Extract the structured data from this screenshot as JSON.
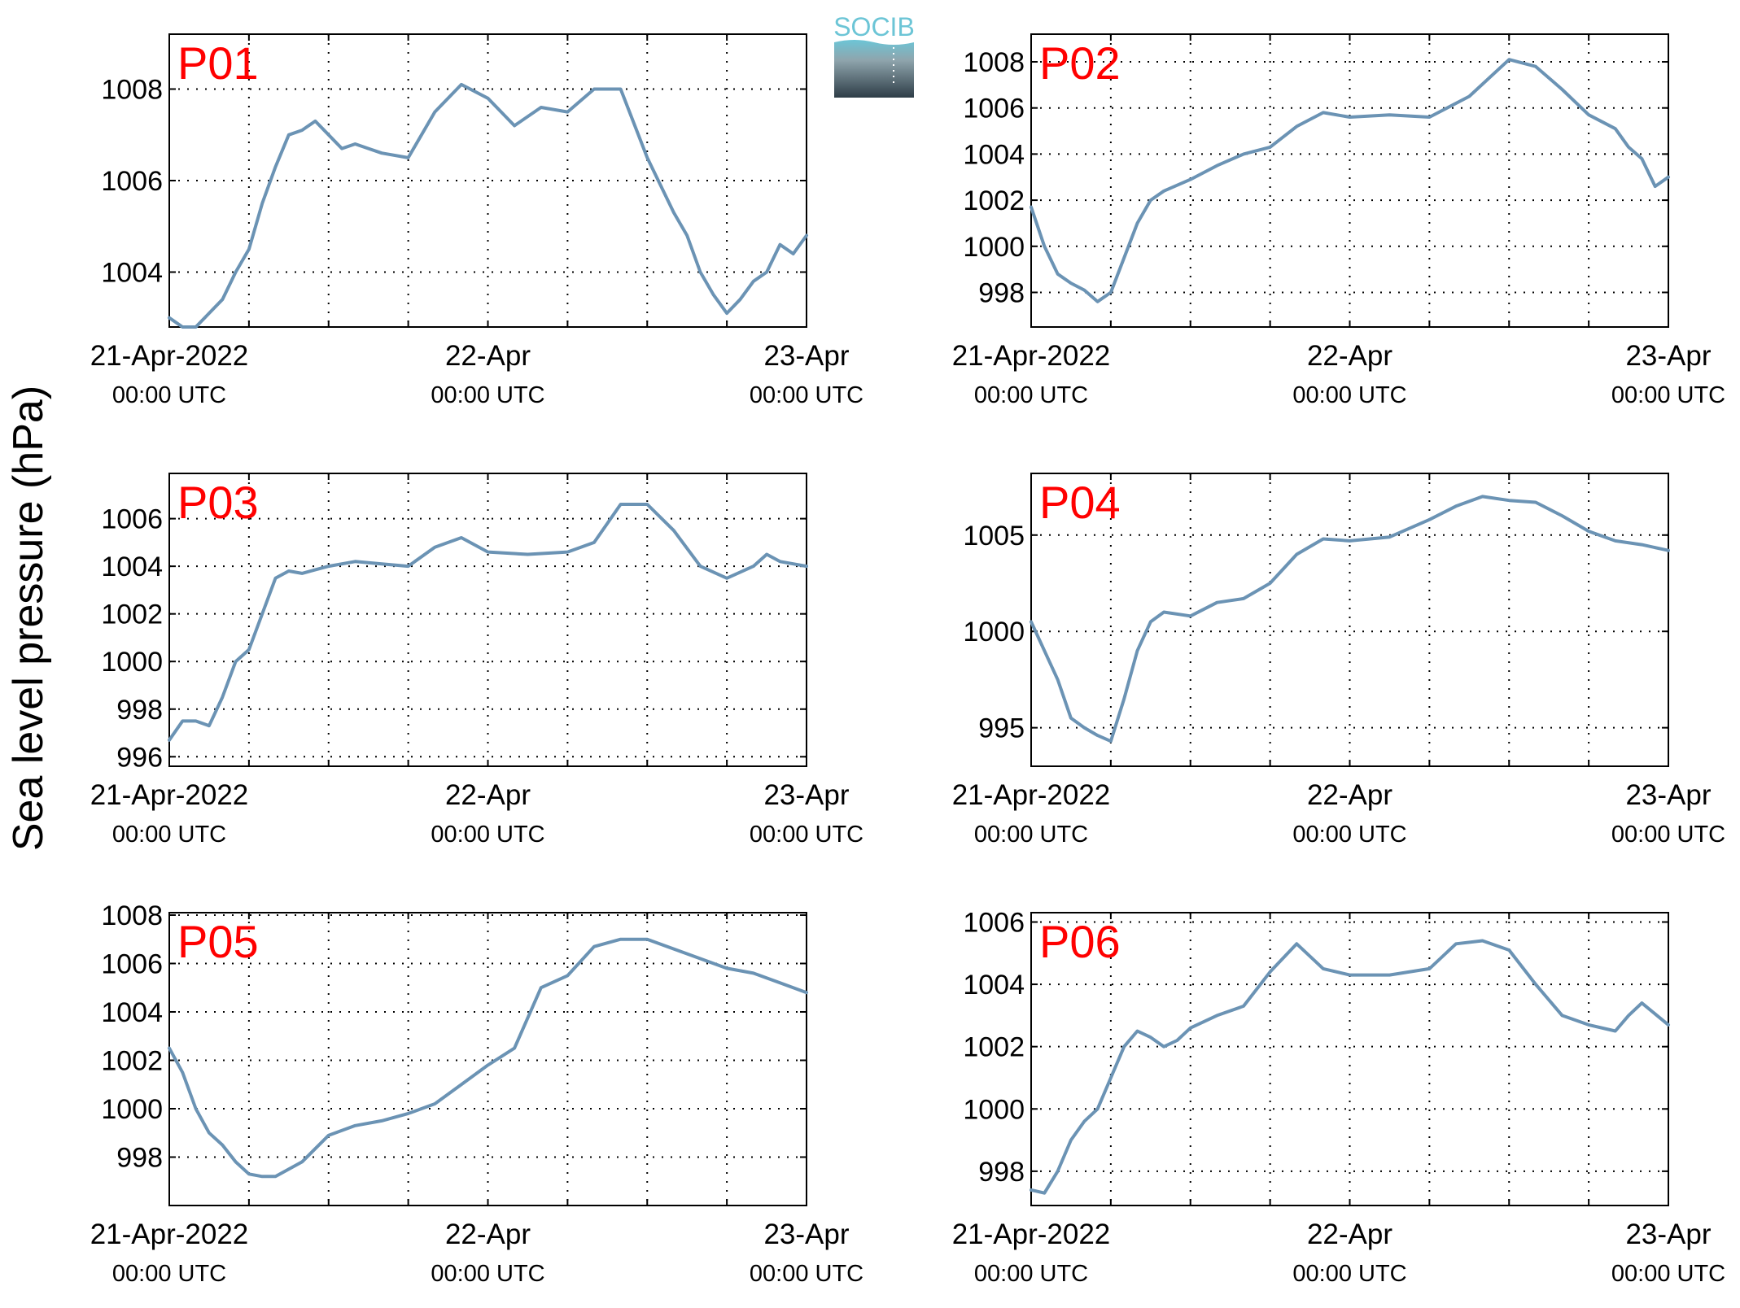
{
  "figure": {
    "ylabel": "Sea level pressure (hPa)",
    "line_color": "#6b93b4",
    "label_color": "#ff0000",
    "logo_text": "SOCIB",
    "logo_colors": [
      "#6cc5d6",
      "#2e3d47"
    ]
  },
  "chart_data": [
    {
      "type": "line",
      "name": "P01",
      "xlim": [
        "2022-04-21T00:00",
        "2022-04-23T00:00"
      ],
      "ylim": [
        1002.8,
        1009.2
      ],
      "yticks": [
        1004,
        1006,
        1008
      ],
      "xtick_labels": [
        {
          "line1": "21-Apr-2022",
          "line2": "00:00 UTC"
        },
        {
          "line1": "22-Apr",
          "line2": "00:00 UTC"
        },
        {
          "line1": "23-Apr",
          "line2": "00:00 UTC"
        }
      ],
      "grid": true,
      "x": [
        "2022-04-21T00:00",
        "2022-04-21T01:00",
        "2022-04-21T02:00",
        "2022-04-21T03:00",
        "2022-04-21T04:00",
        "2022-04-21T05:00",
        "2022-04-21T06:00",
        "2022-04-21T07:00",
        "2022-04-21T08:00",
        "2022-04-21T09:00",
        "2022-04-21T10:00",
        "2022-04-21T11:00",
        "2022-04-21T12:00",
        "2022-04-21T13:00",
        "2022-04-21T14:00",
        "2022-04-21T15:00",
        "2022-04-21T16:00",
        "2022-04-21T18:00",
        "2022-04-21T20:00",
        "2022-04-21T22:00",
        "2022-04-22T00:00",
        "2022-04-22T01:00",
        "2022-04-22T02:00",
        "2022-04-22T04:00",
        "2022-04-22T06:00",
        "2022-04-22T08:00",
        "2022-04-22T10:00",
        "2022-04-22T12:00",
        "2022-04-22T14:00",
        "2022-04-22T15:00",
        "2022-04-22T16:00",
        "2022-04-22T17:00",
        "2022-04-22T18:00",
        "2022-04-22T19:00",
        "2022-04-22T20:00",
        "2022-04-22T21:00",
        "2022-04-22T22:00",
        "2022-04-22T23:00",
        "2022-04-23T00:00"
      ],
      "y": [
        1003.0,
        1002.8,
        1002.8,
        1003.1,
        1003.4,
        1004.0,
        1004.5,
        1005.5,
        1006.3,
        1007.0,
        1007.1,
        1007.3,
        1007.0,
        1006.7,
        1006.8,
        1006.7,
        1006.6,
        1006.5,
        1007.5,
        1008.1,
        1007.8,
        1007.5,
        1007.2,
        1007.6,
        1007.5,
        1008.0,
        1008.0,
        1006.5,
        1005.3,
        1004.8,
        1004.0,
        1003.5,
        1003.1,
        1003.4,
        1003.8,
        1004.0,
        1004.6,
        1004.4,
        1004.8
      ]
    },
    {
      "type": "line",
      "name": "P02",
      "xlim": [
        "2022-04-21T00:00",
        "2022-04-23T00:00"
      ],
      "ylim": [
        996.5,
        1009.2
      ],
      "yticks": [
        998,
        1000,
        1002,
        1004,
        1006,
        1008
      ],
      "xtick_labels": [
        {
          "line1": "21-Apr-2022",
          "line2": "00:00 UTC"
        },
        {
          "line1": "22-Apr",
          "line2": "00:00 UTC"
        },
        {
          "line1": "23-Apr",
          "line2": "00:00 UTC"
        }
      ],
      "grid": true,
      "x": [
        "2022-04-21T00:00",
        "2022-04-21T01:00",
        "2022-04-21T02:00",
        "2022-04-21T03:00",
        "2022-04-21T04:00",
        "2022-04-21T05:00",
        "2022-04-21T06:00",
        "2022-04-21T07:00",
        "2022-04-21T08:00",
        "2022-04-21T09:00",
        "2022-04-21T10:00",
        "2022-04-21T12:00",
        "2022-04-21T14:00",
        "2022-04-21T16:00",
        "2022-04-21T18:00",
        "2022-04-21T20:00",
        "2022-04-21T22:00",
        "2022-04-22T00:00",
        "2022-04-22T03:00",
        "2022-04-22T06:00",
        "2022-04-22T09:00",
        "2022-04-22T12:00",
        "2022-04-22T14:00",
        "2022-04-22T16:00",
        "2022-04-22T18:00",
        "2022-04-22T20:00",
        "2022-04-22T21:00",
        "2022-04-22T22:00",
        "2022-04-22T23:00",
        "2022-04-23T00:00"
      ],
      "y": [
        1001.7,
        1000.0,
        998.8,
        998.4,
        998.1,
        997.6,
        998.0,
        999.5,
        1001.0,
        1002.0,
        1002.4,
        1002.9,
        1003.5,
        1004.0,
        1004.3,
        1005.2,
        1005.8,
        1005.6,
        1005.7,
        1005.6,
        1006.5,
        1008.1,
        1007.8,
        1006.8,
        1005.7,
        1005.1,
        1004.3,
        1003.8,
        1002.6,
        1003.0
      ]
    },
    {
      "type": "line",
      "name": "P03",
      "xlim": [
        "2022-04-21T00:00",
        "2022-04-23T00:00"
      ],
      "ylim": [
        995.6,
        1007.9
      ],
      "yticks": [
        996,
        998,
        1000,
        1002,
        1004,
        1006
      ],
      "xtick_labels": [
        {
          "line1": "21-Apr-2022",
          "line2": "00:00 UTC"
        },
        {
          "line1": "22-Apr",
          "line2": "00:00 UTC"
        },
        {
          "line1": "23-Apr",
          "line2": "00:00 UTC"
        }
      ],
      "grid": true,
      "x": [
        "2022-04-21T00:00",
        "2022-04-21T01:00",
        "2022-04-21T02:00",
        "2022-04-21T03:00",
        "2022-04-21T04:00",
        "2022-04-21T05:00",
        "2022-04-21T06:00",
        "2022-04-21T07:00",
        "2022-04-21T08:00",
        "2022-04-21T09:00",
        "2022-04-21T10:00",
        "2022-04-21T12:00",
        "2022-04-21T14:00",
        "2022-04-21T16:00",
        "2022-04-21T18:00",
        "2022-04-21T20:00",
        "2022-04-21T22:00",
        "2022-04-22T00:00",
        "2022-04-22T03:00",
        "2022-04-22T06:00",
        "2022-04-22T08:00",
        "2022-04-22T10:00",
        "2022-04-22T12:00",
        "2022-04-22T14:00",
        "2022-04-22T16:00",
        "2022-04-22T18:00",
        "2022-04-22T20:00",
        "2022-04-22T21:00",
        "2022-04-22T22:00",
        "2022-04-22T23:00",
        "2022-04-23T00:00"
      ],
      "y": [
        996.7,
        997.5,
        997.5,
        997.3,
        998.5,
        1000.0,
        1000.5,
        1002.0,
        1003.5,
        1003.8,
        1003.7,
        1004.0,
        1004.2,
        1004.1,
        1004.0,
        1004.8,
        1005.2,
        1004.6,
        1004.5,
        1004.6,
        1005.0,
        1006.6,
        1006.6,
        1005.5,
        1004.0,
        1003.5,
        1004.0,
        1004.5,
        1004.2,
        1004.1,
        1004.0
      ]
    },
    {
      "type": "line",
      "name": "P04",
      "xlim": [
        "2022-04-21T00:00",
        "2022-04-23T00:00"
      ],
      "ylim": [
        993.0,
        1008.2
      ],
      "yticks": [
        995,
        1000,
        1005
      ],
      "xtick_labels": [
        {
          "line1": "21-Apr-2022",
          "line2": "00:00 UTC"
        },
        {
          "line1": "22-Apr",
          "line2": "00:00 UTC"
        },
        {
          "line1": "23-Apr",
          "line2": "00:00 UTC"
        }
      ],
      "grid": true,
      "x": [
        "2022-04-21T00:00",
        "2022-04-21T01:00",
        "2022-04-21T02:00",
        "2022-04-21T03:00",
        "2022-04-21T04:00",
        "2022-04-21T05:00",
        "2022-04-21T06:00",
        "2022-04-21T07:00",
        "2022-04-21T08:00",
        "2022-04-21T09:00",
        "2022-04-21T10:00",
        "2022-04-21T12:00",
        "2022-04-21T14:00",
        "2022-04-21T16:00",
        "2022-04-21T18:00",
        "2022-04-21T20:00",
        "2022-04-21T22:00",
        "2022-04-22T00:00",
        "2022-04-22T03:00",
        "2022-04-22T06:00",
        "2022-04-22T08:00",
        "2022-04-22T10:00",
        "2022-04-22T12:00",
        "2022-04-22T14:00",
        "2022-04-22T16:00",
        "2022-04-22T18:00",
        "2022-04-22T20:00",
        "2022-04-22T22:00",
        "2022-04-23T00:00"
      ],
      "y": [
        1000.5,
        999.0,
        997.5,
        995.5,
        995.0,
        994.6,
        994.3,
        996.5,
        999.0,
        1000.5,
        1001.0,
        1000.8,
        1001.5,
        1001.7,
        1002.5,
        1004.0,
        1004.8,
        1004.7,
        1004.9,
        1005.8,
        1006.5,
        1007.0,
        1006.8,
        1006.7,
        1006.0,
        1005.2,
        1004.7,
        1004.5,
        1004.2
      ]
    },
    {
      "type": "line",
      "name": "P05",
      "xlim": [
        "2022-04-21T00:00",
        "2022-04-23T00:00"
      ],
      "ylim": [
        996.0,
        1008.1
      ],
      "yticks": [
        998,
        1000,
        1002,
        1004,
        1006,
        1008
      ],
      "xtick_labels": [
        {
          "line1": "21-Apr-2022",
          "line2": "00:00 UTC"
        },
        {
          "line1": "22-Apr",
          "line2": "00:00 UTC"
        },
        {
          "line1": "23-Apr",
          "line2": "00:00 UTC"
        }
      ],
      "grid": true,
      "x": [
        "2022-04-21T00:00",
        "2022-04-21T01:00",
        "2022-04-21T02:00",
        "2022-04-21T03:00",
        "2022-04-21T04:00",
        "2022-04-21T05:00",
        "2022-04-21T06:00",
        "2022-04-21T07:00",
        "2022-04-21T08:00",
        "2022-04-21T10:00",
        "2022-04-21T12:00",
        "2022-04-21T14:00",
        "2022-04-21T16:00",
        "2022-04-21T18:00",
        "2022-04-21T20:00",
        "2022-04-21T22:00",
        "2022-04-22T00:00",
        "2022-04-22T02:00",
        "2022-04-22T04:00",
        "2022-04-22T06:00",
        "2022-04-22T08:00",
        "2022-04-22T10:00",
        "2022-04-22T12:00",
        "2022-04-22T14:00",
        "2022-04-22T16:00",
        "2022-04-22T18:00",
        "2022-04-22T20:00",
        "2022-04-22T22:00",
        "2022-04-22T23:00",
        "2022-04-23T00:00"
      ],
      "y": [
        1002.5,
        1001.5,
        1000.0,
        999.0,
        998.5,
        997.8,
        997.3,
        997.2,
        997.2,
        997.8,
        998.9,
        999.3,
        999.5,
        999.8,
        1000.2,
        1001.0,
        1001.8,
        1002.5,
        1005.0,
        1005.5,
        1006.7,
        1007.0,
        1007.0,
        1006.6,
        1006.2,
        1005.8,
        1005.6,
        1005.2,
        1005.0,
        1004.8
      ]
    },
    {
      "type": "line",
      "name": "P06",
      "xlim": [
        "2022-04-21T00:00",
        "2022-04-23T00:00"
      ],
      "ylim": [
        996.9,
        1006.3
      ],
      "yticks": [
        998,
        1000,
        1002,
        1004,
        1006
      ],
      "xtick_labels": [
        {
          "line1": "21-Apr-2022",
          "line2": "00:00 UTC"
        },
        {
          "line1": "22-Apr",
          "line2": "00:00 UTC"
        },
        {
          "line1": "23-Apr",
          "line2": "00:00 UTC"
        }
      ],
      "grid": true,
      "x": [
        "2022-04-21T00:00",
        "2022-04-21T01:00",
        "2022-04-21T02:00",
        "2022-04-21T03:00",
        "2022-04-21T04:00",
        "2022-04-21T05:00",
        "2022-04-21T06:00",
        "2022-04-21T07:00",
        "2022-04-21T08:00",
        "2022-04-21T09:00",
        "2022-04-21T10:00",
        "2022-04-21T11:00",
        "2022-04-21T12:00",
        "2022-04-21T14:00",
        "2022-04-21T16:00",
        "2022-04-21T18:00",
        "2022-04-21T20:00",
        "2022-04-21T22:00",
        "2022-04-22T00:00",
        "2022-04-22T03:00",
        "2022-04-22T06:00",
        "2022-04-22T08:00",
        "2022-04-22T10:00",
        "2022-04-22T12:00",
        "2022-04-22T14:00",
        "2022-04-22T16:00",
        "2022-04-22T18:00",
        "2022-04-22T20:00",
        "2022-04-22T21:00",
        "2022-04-22T22:00",
        "2022-04-23T00:00"
      ],
      "y": [
        997.4,
        997.3,
        998.0,
        999.0,
        999.6,
        1000.0,
        1001.0,
        1002.0,
        1002.5,
        1002.3,
        1002.0,
        1002.2,
        1002.6,
        1003.0,
        1003.3,
        1004.4,
        1005.3,
        1004.5,
        1004.3,
        1004.3,
        1004.5,
        1005.3,
        1005.4,
        1005.1,
        1004.0,
        1003.0,
        1002.7,
        1002.5,
        1003.0,
        1003.4,
        1002.7
      ]
    }
  ]
}
